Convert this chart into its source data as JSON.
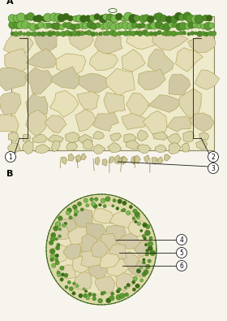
{
  "bg_color": "#f7f4ee",
  "cell_fill_large": "#e8e4c0",
  "cell_edge_large": "#b8a860",
  "cell_fill_small": "#d0cc90",
  "cell_edge_small": "#9a8848",
  "green_fill": "#5a9a30",
  "green_dark": "#3a6a18",
  "green_light": "#7aba50",
  "green_mid": "#4e8a28",
  "line_color": "#1a1a1a",
  "section_bg": "#eeeacc",
  "section_border": "#888860"
}
